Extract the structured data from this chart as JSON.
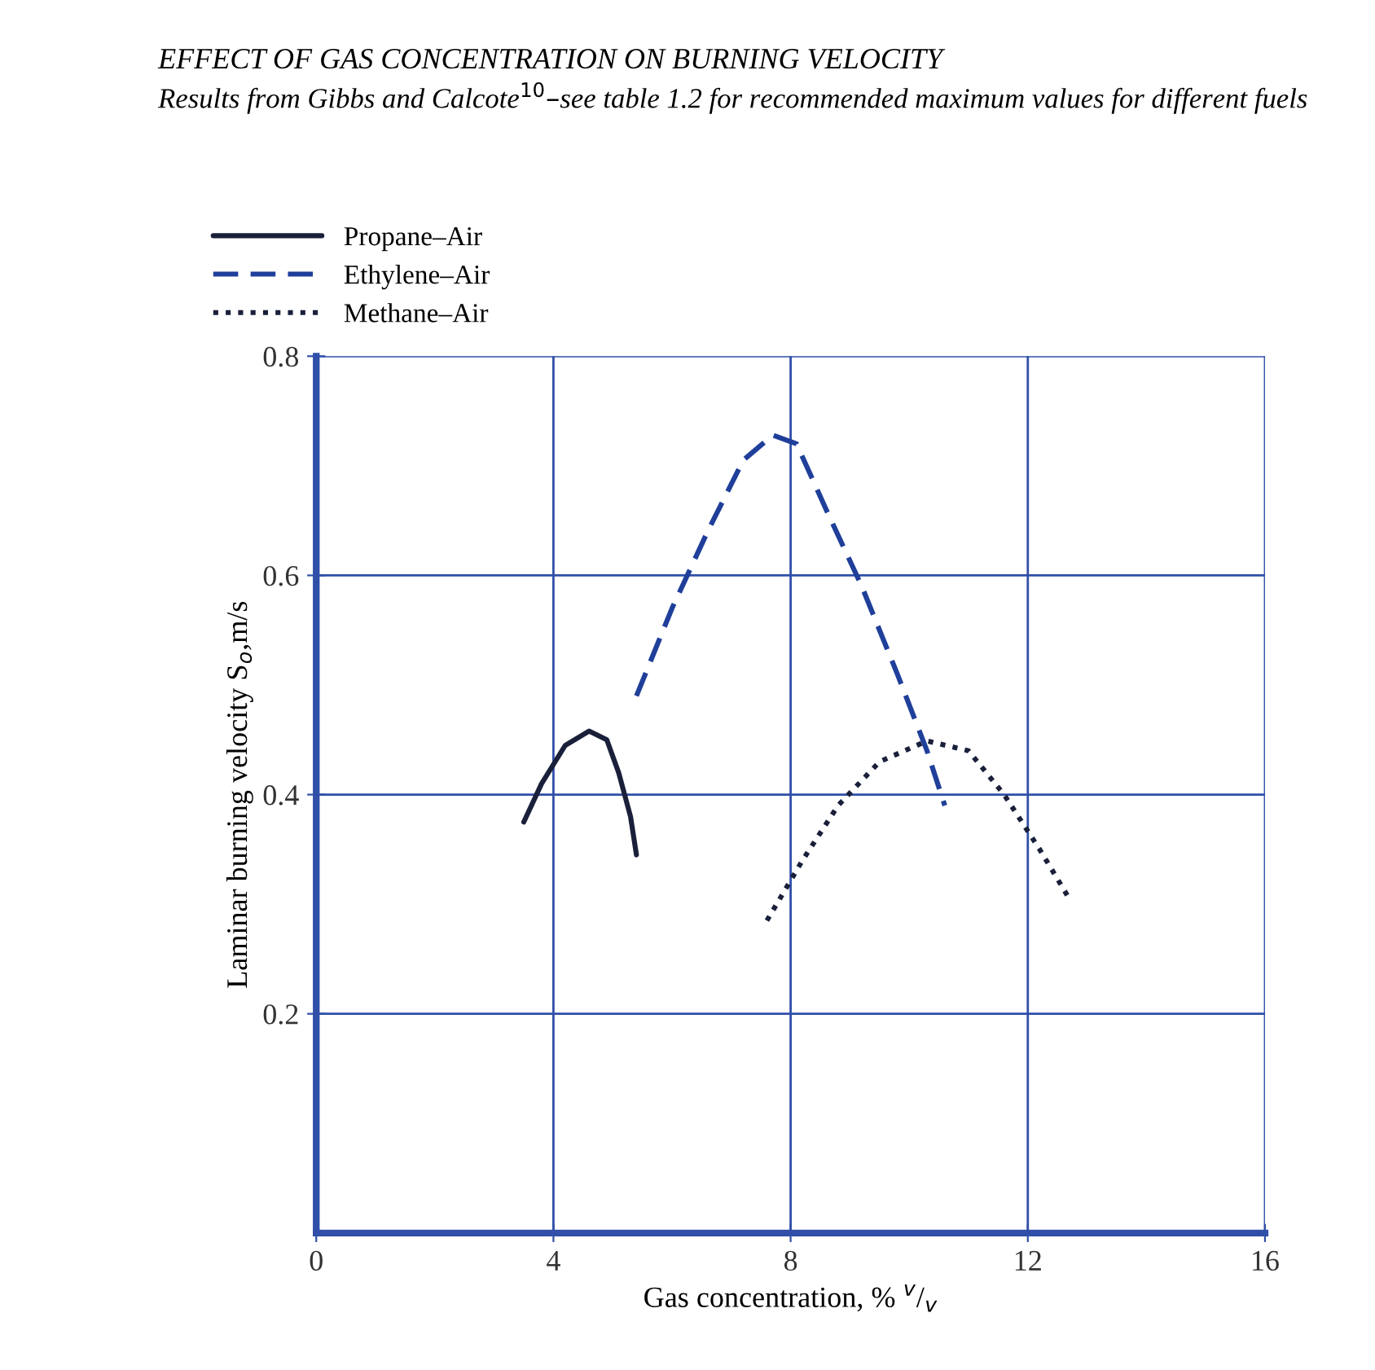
{
  "chart_data": {
    "type": "line",
    "title": "EFFECT OF GAS CONCENTRATION ON BURNING VELOCITY",
    "subtitle": "Results from Gibbs and Calcote$^{10}$–see table 1.2 for recommended maximum values for different fuels",
    "xlabel": "Gas concentration, % $^{v}$/$_{v}$",
    "ylabel": "Laminar burning velocity S$_{o}$,m/s",
    "xlim": [
      0,
      16
    ],
    "ylim": [
      0,
      0.8
    ],
    "xticks": [
      0,
      4,
      8,
      12,
      16
    ],
    "yticks": [
      0.2,
      0.4,
      0.6,
      0.8
    ],
    "grid": true,
    "legend": "top left",
    "series": [
      {
        "name": "Propane–Air",
        "color": "#1a1f3a",
        "line_style": "solid",
        "x": [
          3.5,
          3.8,
          4.2,
          4.6,
          4.9,
          5.1,
          5.3,
          5.4
        ],
        "values": [
          0.375,
          0.41,
          0.445,
          0.458,
          0.45,
          0.42,
          0.38,
          0.345
        ]
      },
      {
        "name": "Ethylene–Air",
        "color": "#1f3f9a",
        "line_style": "dashed",
        "x": [
          5.4,
          6.0,
          6.6,
          7.2,
          7.7,
          8.1,
          8.6,
          9.2,
          9.8,
          10.3,
          10.6
        ],
        "values": [
          0.49,
          0.57,
          0.64,
          0.705,
          0.728,
          0.72,
          0.66,
          0.59,
          0.51,
          0.44,
          0.39
        ]
      },
      {
        "name": "Methane–Air",
        "color": "#1a1f3a",
        "line_style": "dotted",
        "x": [
          7.6,
          8.2,
          8.8,
          9.5,
          10.3,
          11.0,
          11.6,
          12.2,
          12.7
        ],
        "values": [
          0.285,
          0.34,
          0.39,
          0.43,
          0.449,
          0.44,
          0.4,
          0.35,
          0.305
        ]
      }
    ]
  }
}
